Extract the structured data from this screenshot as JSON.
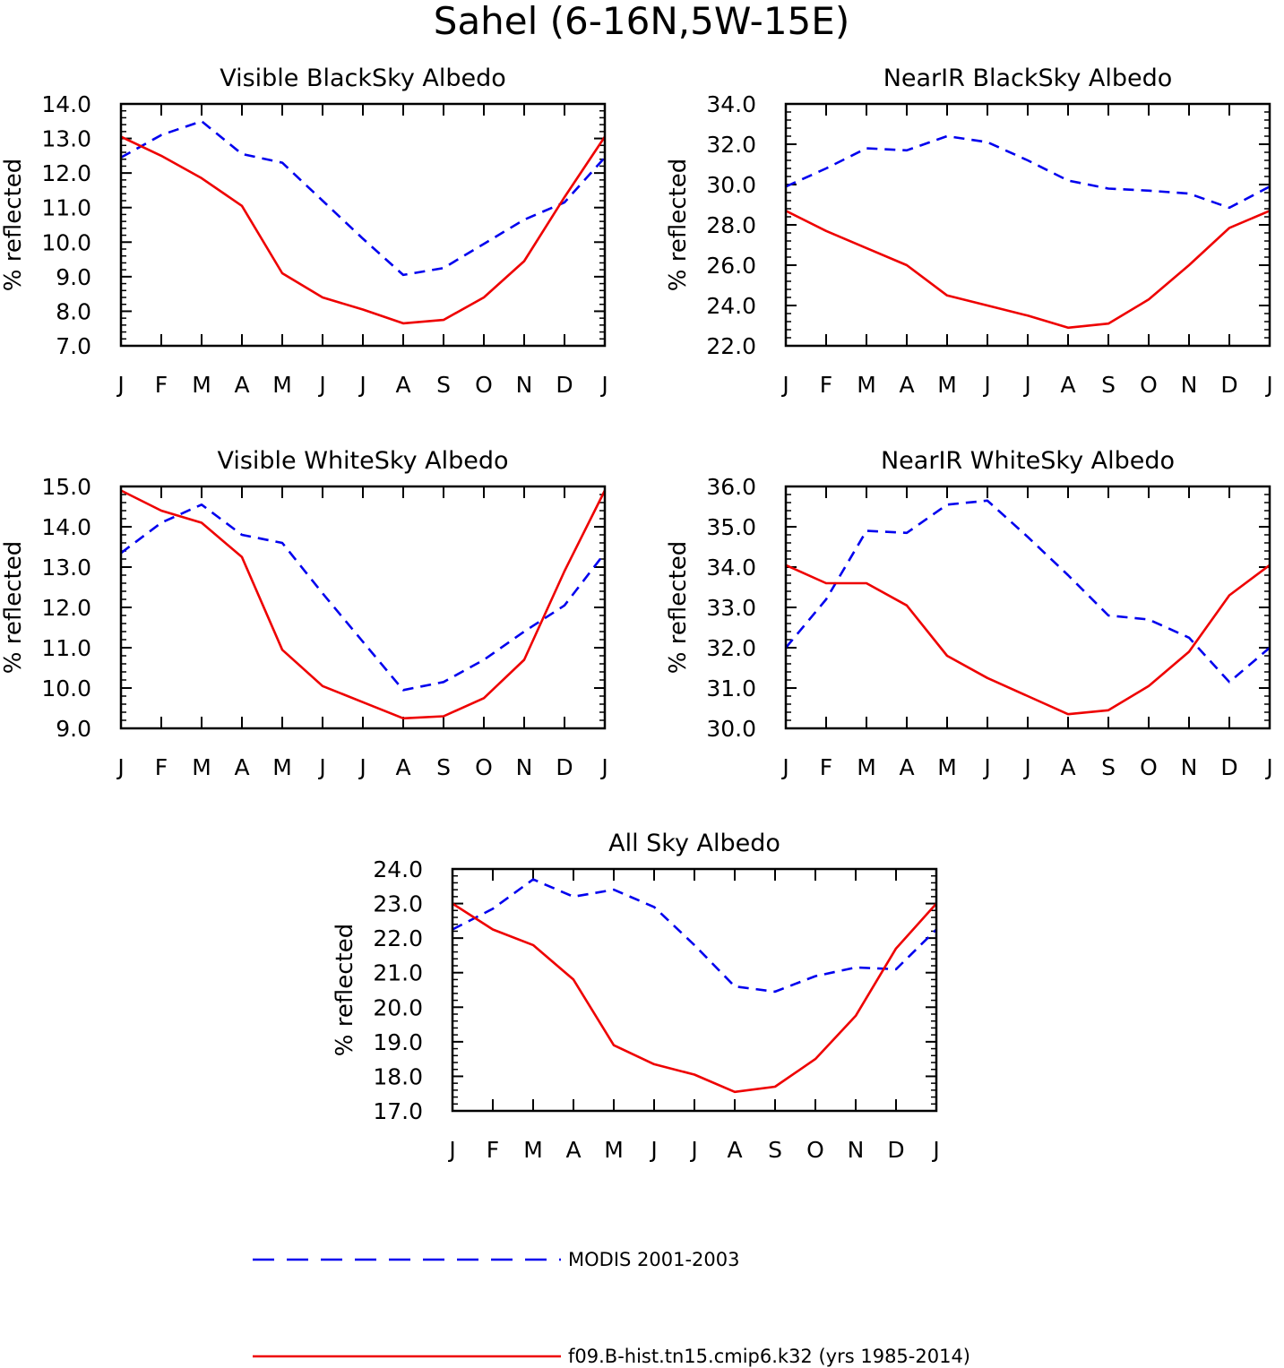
{
  "figure": {
    "title": "Sahel (6-16N,5W-15E)"
  },
  "colors": {
    "modis": "#0000ee",
    "model": "#ee0000",
    "axes": "#000000"
  },
  "legend": [
    {
      "label": "MODIS 2001-2003",
      "style": "dashed",
      "color": "#0000ee"
    },
    {
      "label": "f09.B-hist.tn15.cmip6.k32 (yrs 1985-2014)",
      "style": "solid",
      "color": "#ee0000"
    }
  ],
  "chart_data": [
    {
      "type": "line",
      "title": "Visible BlackSky Albedo",
      "ylabel": "% reflected",
      "categories": [
        "J",
        "F",
        "M",
        "A",
        "M",
        "J",
        "J",
        "A",
        "S",
        "O",
        "N",
        "D",
        "J"
      ],
      "ylim": [
        7.0,
        14.0
      ],
      "yticks": [
        7.0,
        8.0,
        9.0,
        10.0,
        11.0,
        12.0,
        13.0,
        14.0
      ],
      "series": [
        {
          "name": "MODIS 2001-2003",
          "values": [
            12.45,
            13.1,
            13.5,
            12.55,
            12.3,
            11.2,
            10.1,
            9.05,
            9.25,
            9.95,
            10.65,
            11.15,
            12.45
          ]
        },
        {
          "name": "f09.B-hist.tn15.cmip6.k32 (yrs 1985-2014)",
          "values": [
            13.05,
            12.5,
            11.85,
            11.05,
            9.1,
            8.4,
            8.05,
            7.65,
            7.75,
            8.4,
            9.45,
            11.3,
            13.05
          ]
        }
      ]
    },
    {
      "type": "line",
      "title": "NearIR BlackSky Albedo",
      "ylabel": "% reflected",
      "categories": [
        "J",
        "F",
        "M",
        "A",
        "M",
        "J",
        "J",
        "A",
        "S",
        "O",
        "N",
        "D",
        "J"
      ],
      "ylim": [
        22.0,
        34.0
      ],
      "yticks": [
        22.0,
        24.0,
        26.0,
        28.0,
        30.0,
        32.0,
        34.0
      ],
      "series": [
        {
          "name": "MODIS 2001-2003",
          "values": [
            29.9,
            30.8,
            31.8,
            31.7,
            32.4,
            32.1,
            31.2,
            30.2,
            29.8,
            29.7,
            29.55,
            28.85,
            29.9
          ]
        },
        {
          "name": "f09.B-hist.tn15.cmip6.k32 (yrs 1985-2014)",
          "values": [
            28.7,
            27.7,
            26.85,
            26.0,
            24.5,
            24.0,
            23.5,
            22.9,
            23.1,
            24.3,
            26.0,
            27.85,
            28.7
          ]
        }
      ]
    },
    {
      "type": "line",
      "title": "Visible WhiteSky Albedo",
      "ylabel": "% reflected",
      "categories": [
        "J",
        "F",
        "M",
        "A",
        "M",
        "J",
        "J",
        "A",
        "S",
        "O",
        "N",
        "D",
        "J"
      ],
      "ylim": [
        9.0,
        15.0
      ],
      "yticks": [
        9.0,
        10.0,
        11.0,
        12.0,
        13.0,
        14.0,
        15.0
      ],
      "series": [
        {
          "name": "MODIS 2001-2003",
          "values": [
            13.35,
            14.1,
            14.55,
            13.8,
            13.6,
            12.35,
            11.15,
            9.95,
            10.15,
            10.7,
            11.4,
            12.05,
            13.35
          ]
        },
        {
          "name": "f09.B-hist.tn15.cmip6.k32 (yrs 1985-2014)",
          "values": [
            14.9,
            14.4,
            14.1,
            13.25,
            10.95,
            10.05,
            9.65,
            9.25,
            9.3,
            9.75,
            10.7,
            12.9,
            14.9
          ]
        }
      ]
    },
    {
      "type": "line",
      "title": "NearIR WhiteSky Albedo",
      "ylabel": "% reflected",
      "categories": [
        "J",
        "F",
        "M",
        "A",
        "M",
        "J",
        "J",
        "A",
        "S",
        "O",
        "N",
        "D",
        "J"
      ],
      "ylim": [
        30.0,
        36.0
      ],
      "yticks": [
        30.0,
        31.0,
        32.0,
        33.0,
        34.0,
        35.0,
        36.0
      ],
      "series": [
        {
          "name": "MODIS 2001-2003",
          "values": [
            32.0,
            33.2,
            34.9,
            34.85,
            35.55,
            35.65,
            34.75,
            33.8,
            32.8,
            32.7,
            32.25,
            31.15,
            32.0
          ]
        },
        {
          "name": "f09.B-hist.tn15.cmip6.k32 (yrs 1985-2014)",
          "values": [
            34.05,
            33.6,
            33.6,
            33.05,
            31.8,
            31.25,
            30.8,
            30.35,
            30.45,
            31.05,
            31.9,
            33.3,
            34.05
          ]
        }
      ]
    },
    {
      "type": "line",
      "title": "All Sky Albedo",
      "ylabel": "% reflected",
      "categories": [
        "J",
        "F",
        "M",
        "A",
        "M",
        "J",
        "J",
        "A",
        "S",
        "O",
        "N",
        "D",
        "J"
      ],
      "ylim": [
        17.0,
        24.0
      ],
      "yticks": [
        17.0,
        18.0,
        19.0,
        20.0,
        21.0,
        22.0,
        23.0,
        24.0
      ],
      "series": [
        {
          "name": "MODIS 2001-2003",
          "values": [
            22.25,
            22.85,
            23.7,
            23.2,
            23.4,
            22.9,
            21.8,
            20.6,
            20.45,
            20.9,
            21.15,
            21.1,
            22.25
          ]
        },
        {
          "name": "f09.B-hist.tn15.cmip6.k32 (yrs 1985-2014)",
          "values": [
            23.0,
            22.25,
            21.8,
            20.8,
            18.9,
            18.35,
            18.05,
            17.55,
            17.7,
            18.5,
            19.75,
            21.7,
            23.0
          ]
        }
      ]
    }
  ]
}
